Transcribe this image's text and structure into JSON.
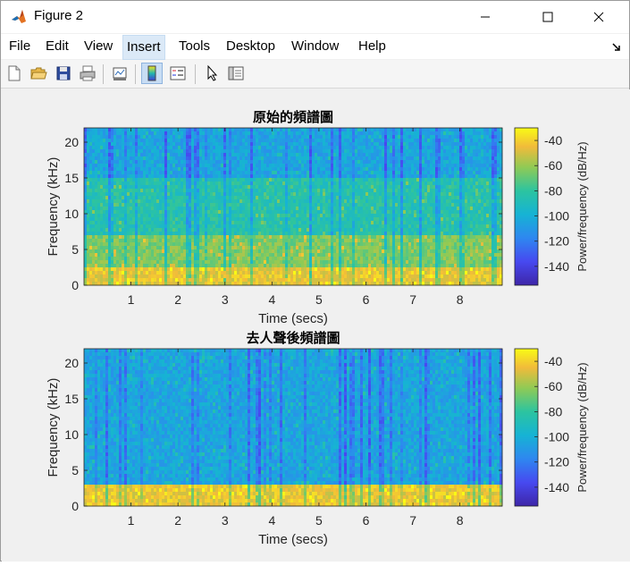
{
  "window": {
    "title": "Figure 2"
  },
  "menu": [
    "File",
    "Edit",
    "View",
    "Insert",
    "Tools",
    "Desktop",
    "Window",
    "Help"
  ],
  "menu_active": "Insert",
  "toolbar": [
    "new-figure-icon",
    "open-file-icon",
    "save-icon",
    "print-icon",
    "link-plot-icon",
    "colorbar-icon",
    "legend-icon",
    "pointer-icon",
    "property-inspector-icon"
  ],
  "chart_data": [
    {
      "type": "heatmap",
      "title": "原始的頻譜圖",
      "xlabel": "Time (secs)",
      "ylabel": "Frequency (kHz)",
      "xlim": [
        0,
        8.9
      ],
      "ylim": [
        0,
        22
      ],
      "xticks": [
        "1",
        "2",
        "3",
        "4",
        "5",
        "6",
        "7",
        "8"
      ],
      "yticks": [
        "0",
        "5",
        "10",
        "15",
        "20"
      ],
      "colorbar": {
        "label": "Power/frequency (dB/Hz)",
        "ticks": [
          "-40",
          "-60",
          "-80",
          "-100",
          "-120",
          "-140"
        ],
        "range": [
          -155,
          -30
        ]
      },
      "bands": [
        {
          "from_khz": 0,
          "to_khz": 2.5,
          "level_db": -45
        },
        {
          "from_khz": 2.5,
          "to_khz": 7,
          "level_db": -65
        },
        {
          "from_khz": 7,
          "to_khz": 15,
          "level_db": -85
        },
        {
          "from_khz": 15,
          "to_khz": 22,
          "level_db": -105
        }
      ]
    },
    {
      "type": "heatmap",
      "title": "去人聲後頻譜圖",
      "xlabel": "Time (secs)",
      "ylabel": "Frequency (kHz)",
      "xlim": [
        0,
        8.9
      ],
      "ylim": [
        0,
        22
      ],
      "xticks": [
        "1",
        "2",
        "3",
        "4",
        "5",
        "6",
        "7",
        "8"
      ],
      "yticks": [
        "0",
        "5",
        "10",
        "15",
        "20"
      ],
      "colorbar": {
        "label": "Power/frequency (dB/Hz)",
        "ticks": [
          "-40",
          "-60",
          "-80",
          "-100",
          "-120",
          "-140"
        ],
        "range": [
          -155,
          -30
        ]
      },
      "bands": [
        {
          "from_khz": 0,
          "to_khz": 2.8,
          "level_db": -45
        },
        {
          "from_khz": 2.8,
          "to_khz": 22,
          "level_db": -105
        }
      ]
    }
  ]
}
